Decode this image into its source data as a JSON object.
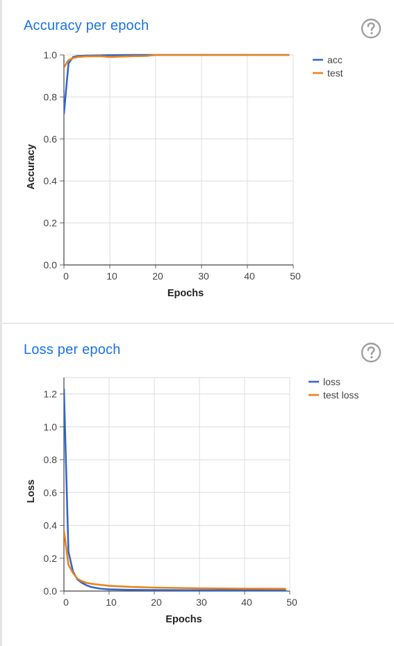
{
  "panels": [
    {
      "title": "Accuracy per epoch",
      "help_icon": "help-circle-icon",
      "chart_data": {
        "type": "line",
        "title": "Accuracy per epoch",
        "xlabel": "Epochs",
        "ylabel": "Accuracy",
        "xlim": [
          0,
          50
        ],
        "ylim": [
          0,
          1
        ],
        "xticks": [
          "0",
          "10",
          "20",
          "30",
          "40",
          "50"
        ],
        "yticks": [
          "0.0",
          "0.2",
          "0.4",
          "0.6",
          "0.8",
          "1.0"
        ],
        "grid": true,
        "legend_position": "top-right",
        "series": [
          {
            "name": "acc",
            "color": "#3366cc",
            "x": [
              0,
              1,
              2,
              3,
              5,
              8,
              10,
              15,
              20,
              30,
              40,
              49
            ],
            "y": [
              0.72,
              0.96,
              0.99,
              0.995,
              0.997,
              0.998,
              0.999,
              1.0,
              1.0,
              1.0,
              1.0,
              1.0
            ]
          },
          {
            "name": "test",
            "color": "#e8841a",
            "x": [
              0,
              1,
              2,
              3,
              5,
              8,
              10,
              12,
              15,
              18,
              20,
              30,
              40,
              49
            ],
            "y": [
              0.94,
              0.975,
              0.985,
              0.99,
              0.993,
              0.994,
              0.99,
              0.992,
              0.994,
              0.995,
              1.0,
              1.0,
              1.0,
              1.0
            ]
          }
        ]
      }
    },
    {
      "title": "Loss per epoch",
      "help_icon": "help-circle-icon",
      "chart_data": {
        "type": "line",
        "title": "Loss per epoch",
        "xlabel": "Epochs",
        "ylabel": "Loss",
        "xlim": [
          0,
          50
        ],
        "ylim": [
          0,
          1.3
        ],
        "xticks": [
          "0",
          "10",
          "20",
          "30",
          "40",
          "50"
        ],
        "yticks": [
          "0.0",
          "0.2",
          "0.4",
          "0.6",
          "0.8",
          "1.0",
          "1.2"
        ],
        "grid": true,
        "legend_position": "top-right",
        "series": [
          {
            "name": "loss",
            "color": "#3366cc",
            "x": [
              0,
              1,
              2,
              3,
              4,
              5,
              6,
              8,
              10,
              15,
              20,
              30,
              40,
              49
            ],
            "y": [
              1.23,
              0.24,
              0.12,
              0.07,
              0.05,
              0.035,
              0.025,
              0.015,
              0.01,
              0.007,
              0.006,
              0.005,
              0.005,
              0.005
            ]
          },
          {
            "name": "test loss",
            "color": "#e8841a",
            "x": [
              0,
              1,
              2,
              3,
              4,
              5,
              6,
              8,
              10,
              15,
              20,
              30,
              40,
              49
            ],
            "y": [
              0.37,
              0.16,
              0.11,
              0.075,
              0.06,
              0.05,
              0.045,
              0.038,
              0.032,
              0.025,
              0.021,
              0.017,
              0.015,
              0.014
            ]
          }
        ]
      }
    }
  ]
}
